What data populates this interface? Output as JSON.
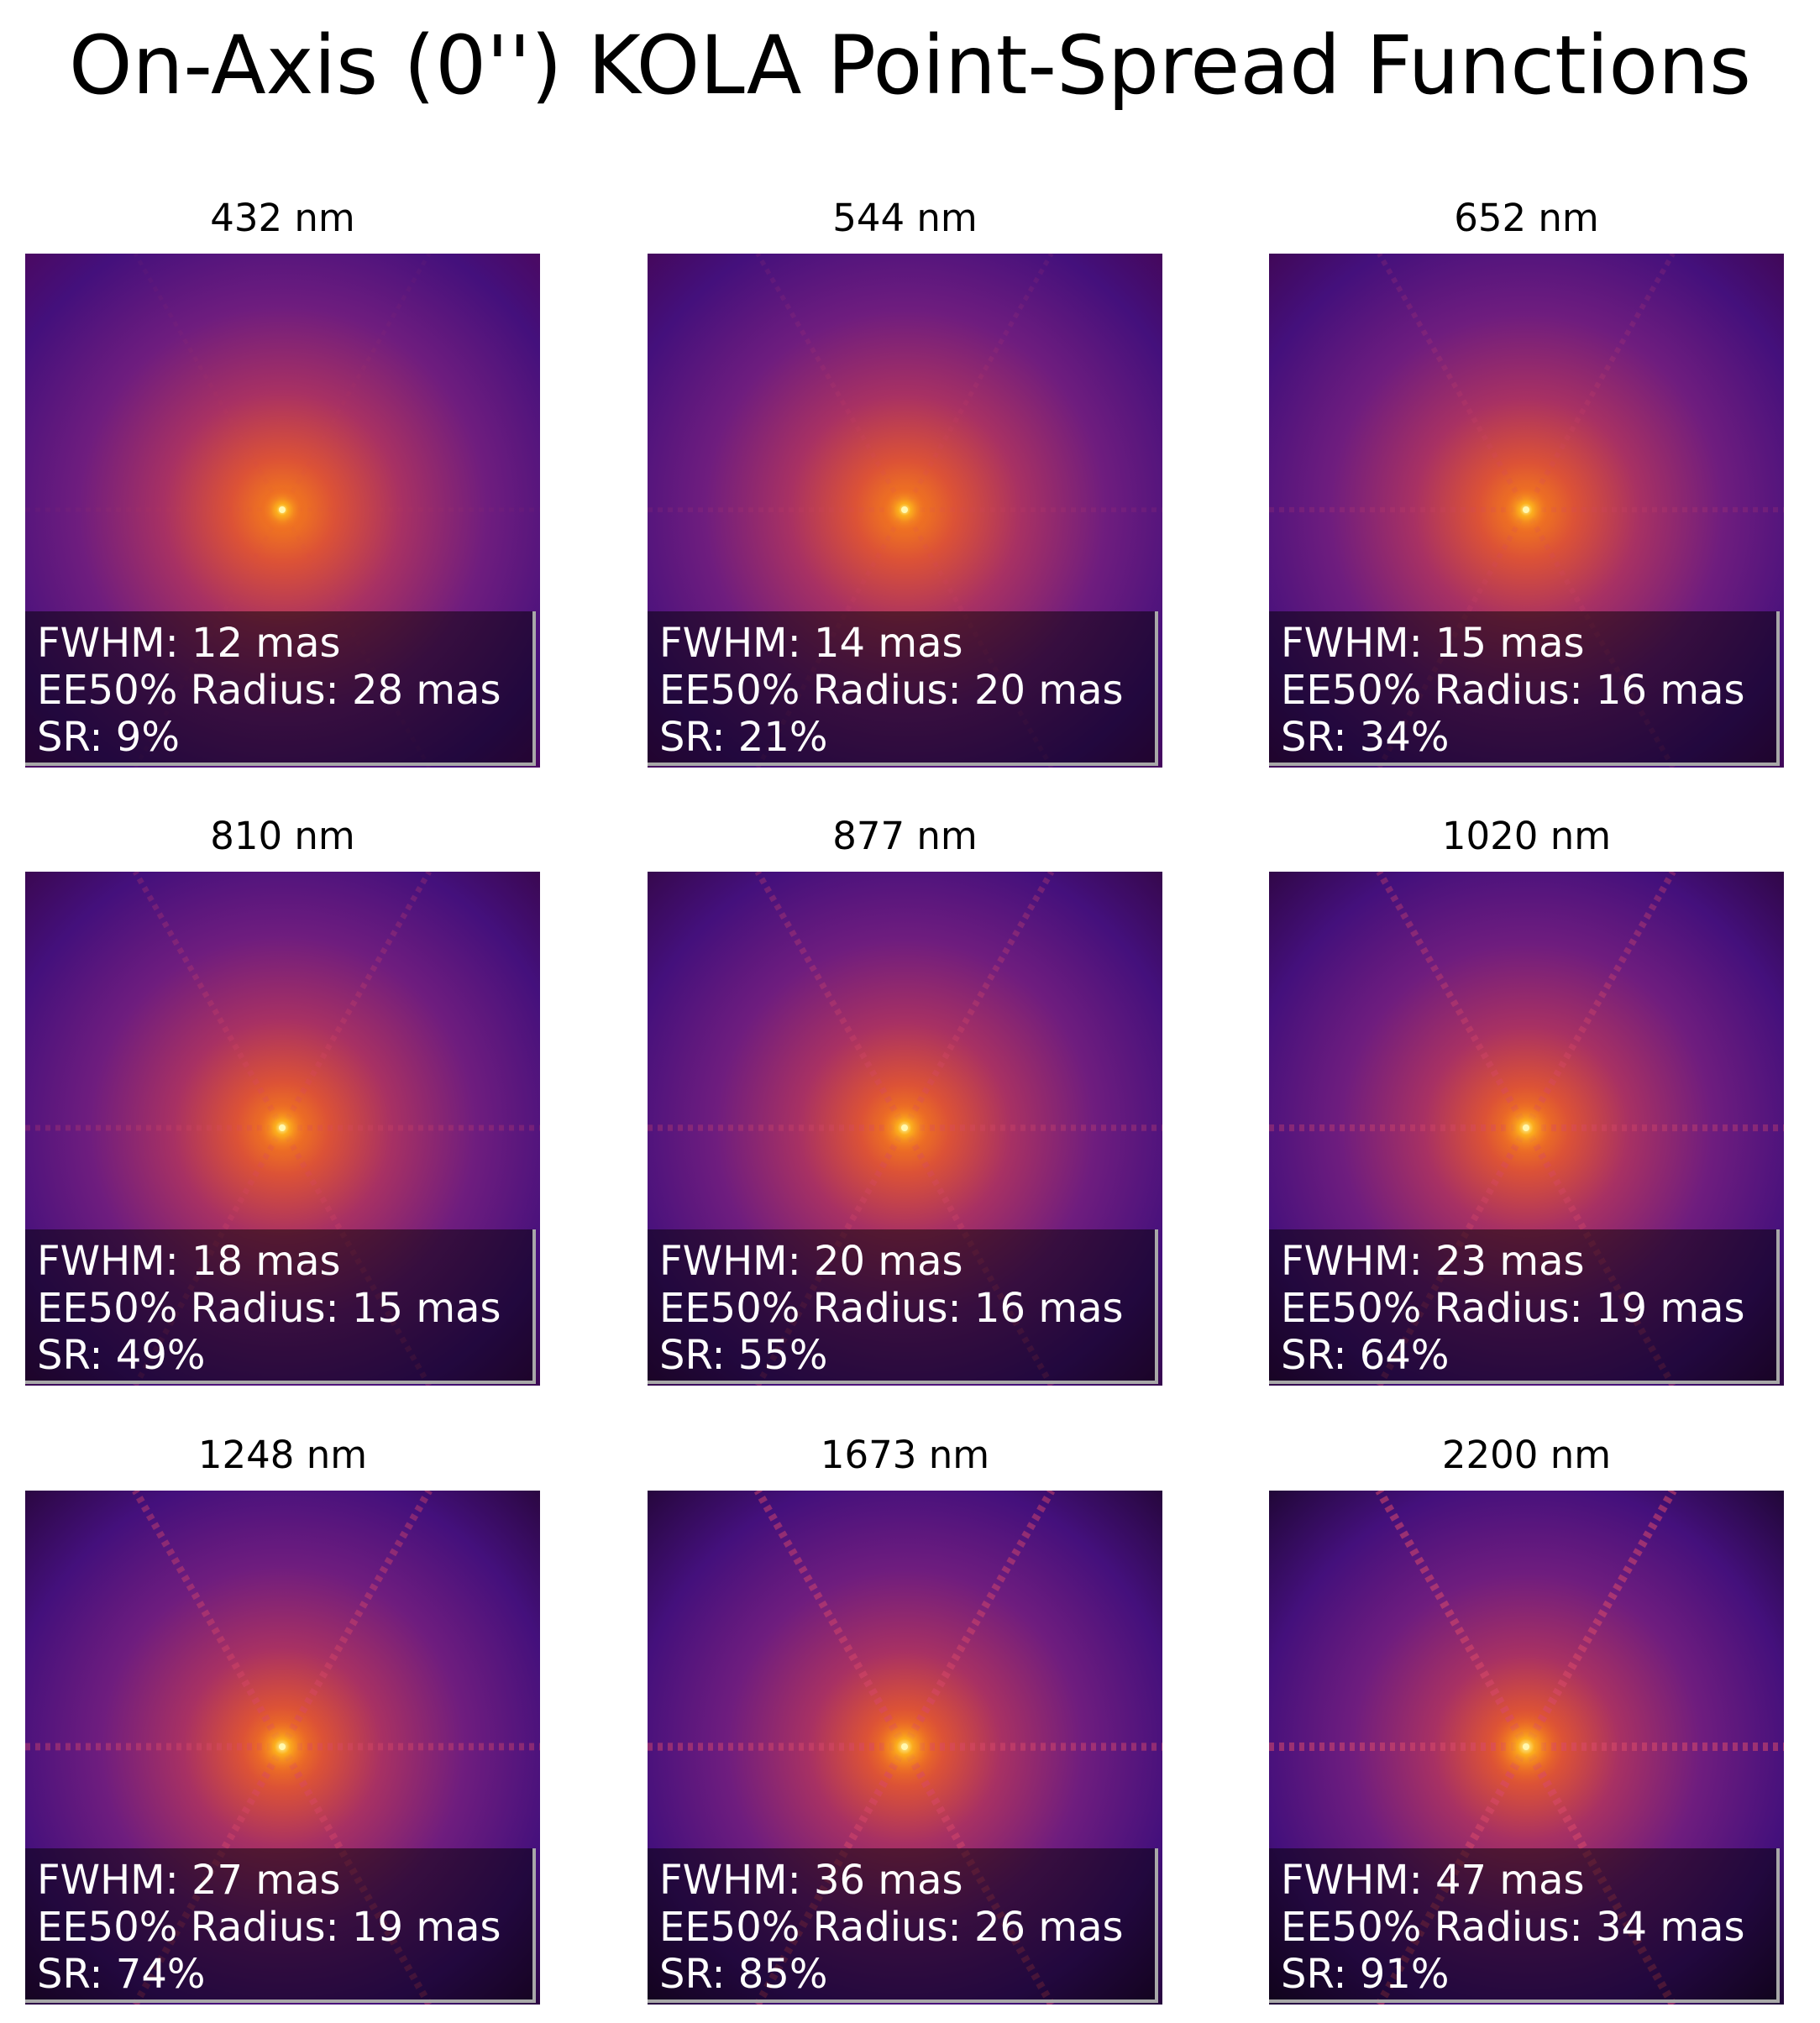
{
  "title": "On-Axis (0'') KOLA Point-Spread Functions",
  "chart_data": {
    "type": "image-grid",
    "title": "On-Axis (0'') KOLA Point-Spread Functions",
    "colormap": "inferno",
    "grid": "3x3",
    "axes": "off",
    "panels": [
      {
        "title": "432 nm",
        "wavelength_nm": 432,
        "fwhm_text": "FWHM: 12 mas",
        "ee50_text": "EE50% Radius: 28 mas",
        "sr_text": "SR: 9%",
        "fwhm_mas": 12,
        "ee50_radius_mas": 28,
        "strehl_ratio_pct": 9
      },
      {
        "title": "544 nm",
        "wavelength_nm": 544,
        "fwhm_text": "FWHM: 14 mas",
        "ee50_text": "EE50% Radius: 20 mas",
        "sr_text": "SR: 21%",
        "fwhm_mas": 14,
        "ee50_radius_mas": 20,
        "strehl_ratio_pct": 21
      },
      {
        "title": "652 nm",
        "wavelength_nm": 652,
        "fwhm_text": "FWHM: 15 mas",
        "ee50_text": "EE50% Radius: 16 mas",
        "sr_text": "SR: 34%",
        "fwhm_mas": 15,
        "ee50_radius_mas": 16,
        "strehl_ratio_pct": 34
      },
      {
        "title": "810 nm",
        "wavelength_nm": 810,
        "fwhm_text": "FWHM: 18 mas",
        "ee50_text": "EE50% Radius: 15 mas",
        "sr_text": "SR: 49%",
        "fwhm_mas": 18,
        "ee50_radius_mas": 15,
        "strehl_ratio_pct": 49
      },
      {
        "title": "877 nm",
        "wavelength_nm": 877,
        "fwhm_text": "FWHM: 20 mas",
        "ee50_text": "EE50% Radius: 16 mas",
        "sr_text": "SR: 55%",
        "fwhm_mas": 20,
        "ee50_radius_mas": 16,
        "strehl_ratio_pct": 55
      },
      {
        "title": "1020 nm",
        "wavelength_nm": 1020,
        "fwhm_text": "FWHM: 23 mas",
        "ee50_text": "EE50% Radius: 19 mas",
        "sr_text": "SR: 64%",
        "fwhm_mas": 23,
        "ee50_radius_mas": 19,
        "strehl_ratio_pct": 64
      },
      {
        "title": "1248 nm",
        "wavelength_nm": 1248,
        "fwhm_text": "FWHM: 27 mas",
        "ee50_text": "EE50% Radius: 19 mas",
        "sr_text": "SR: 74%",
        "fwhm_mas": 27,
        "ee50_radius_mas": 19,
        "strehl_ratio_pct": 74
      },
      {
        "title": "1673 nm",
        "wavelength_nm": 1673,
        "fwhm_text": "FWHM: 36 mas",
        "ee50_text": "EE50% Radius: 26 mas",
        "sr_text": "SR: 85%",
        "fwhm_mas": 36,
        "ee50_radius_mas": 26,
        "strehl_ratio_pct": 85
      },
      {
        "title": "2200 nm",
        "wavelength_nm": 2200,
        "fwhm_text": "FWHM: 47 mas",
        "ee50_text": "EE50% Radius: 34 mas",
        "sr_text": "SR: 91%",
        "fwhm_mas": 47,
        "ee50_radius_mas": 34,
        "strehl_ratio_pct": 91
      }
    ]
  }
}
